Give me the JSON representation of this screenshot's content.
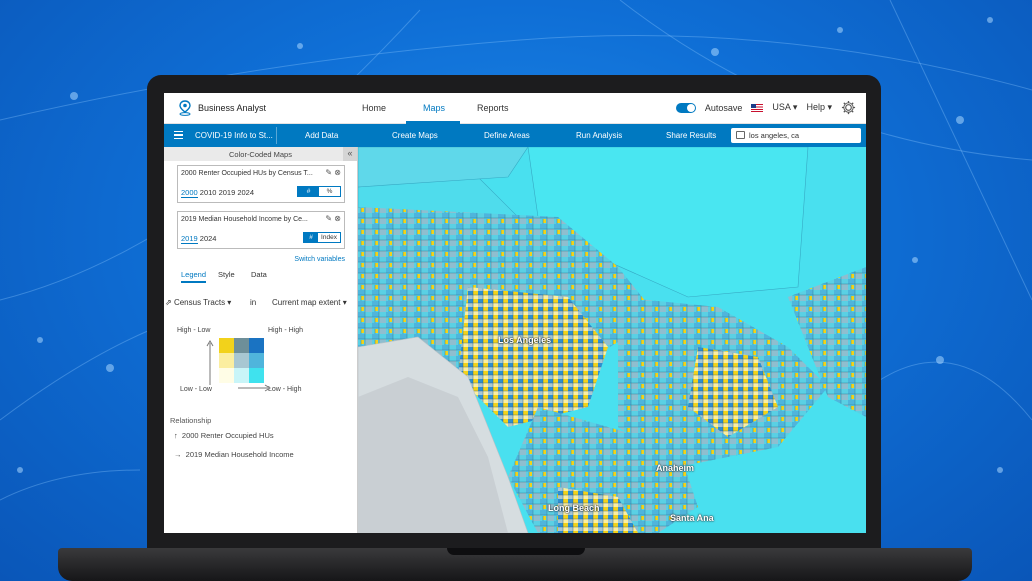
{
  "header": {
    "app_title": "Business Analyst",
    "nav": {
      "home": "Home",
      "maps": "Maps",
      "reports": "Reports"
    },
    "autosave_label": "Autosave",
    "country": "USA",
    "help": "Help"
  },
  "toolbar": {
    "project": "COVID-19 Info to St...",
    "add_data": "Add Data",
    "create_maps": "Create Maps",
    "define_areas": "Define Areas",
    "run_analysis": "Run Analysis",
    "share_results": "Share Results",
    "search_value": "los angeles, ca"
  },
  "panel": {
    "title": "Color-Coded Maps",
    "variable1": {
      "name": "2000 Renter Occupied HUs by Census T...",
      "years": [
        "2000",
        "2010",
        "2019",
        "2024"
      ],
      "selected_year": "2000",
      "toggle_options": [
        "#",
        "%"
      ],
      "toggle_selected": "#"
    },
    "variable2": {
      "name": "2019 Median Household Income by Ce...",
      "years": [
        "2019",
        "2024"
      ],
      "selected_year": "2019",
      "toggle_options": [
        "#",
        "Index"
      ],
      "toggle_selected": "#"
    },
    "switch_variables": "Switch variables",
    "tabs": [
      "Legend",
      "Style",
      "Data"
    ],
    "active_tab": "Legend",
    "geography": "Census Tracts",
    "in_label": "in",
    "extent": "Current map extent",
    "legend": {
      "high_low": "High - Low",
      "high_high": "High - High",
      "low_low": "Low - Low",
      "low_high": "Low - High",
      "grid_colors": [
        [
          "#f2d21b",
          "#6e8f99",
          "#1a73c2"
        ],
        [
          "#fbeea0",
          "#a8c7d2",
          "#4fb5dc"
        ],
        [
          "#fffde6",
          "#c9f5f8",
          "#3fe2ee"
        ]
      ]
    },
    "relationship_title": "Relationship",
    "relationship_y": "2000 Renter Occupied HUs",
    "relationship_x": "2019 Median Household Income"
  },
  "map": {
    "labels": [
      "Los Angeles",
      "Anaheim",
      "Long Beach",
      "Santa Ana"
    ]
  },
  "colors": {
    "accent": "#0079c1",
    "map_base": "#49e0ef",
    "background": "#0f6fd6"
  }
}
